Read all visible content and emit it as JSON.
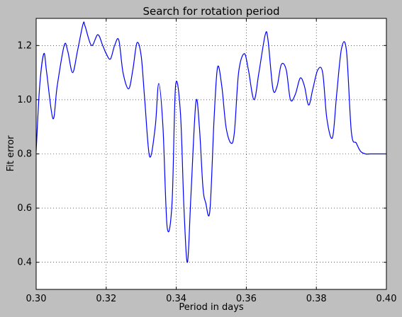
{
  "chart_data": {
    "type": "line",
    "title": "Search for rotation period",
    "xlabel": "Period in days",
    "ylabel": "Fit error",
    "xlim": [
      0.3,
      0.4
    ],
    "ylim": [
      0.3,
      1.3
    ],
    "xticks": [
      0.3,
      0.32,
      0.34,
      0.36,
      0.38,
      0.4
    ],
    "xtick_labels": [
      "0.30",
      "0.32",
      "0.34",
      "0.36",
      "0.38",
      "0.40"
    ],
    "yticks": [
      0.4,
      0.6,
      0.8,
      1.0,
      1.2
    ],
    "ytick_labels": [
      "0.4",
      "0.6",
      "0.8",
      "1.0",
      "1.2"
    ],
    "grid": true,
    "series": [
      {
        "color": "#0000ff",
        "x": [
          0.3,
          0.301,
          0.3022,
          0.303,
          0.3048,
          0.306,
          0.308,
          0.309,
          0.3104,
          0.3118,
          0.3134,
          0.314,
          0.3158,
          0.3176,
          0.319,
          0.32,
          0.3212,
          0.3224,
          0.3236,
          0.3248,
          0.3264,
          0.3276,
          0.3288,
          0.33,
          0.331,
          0.3324,
          0.334,
          0.335,
          0.3362,
          0.3374,
          0.3388,
          0.3398,
          0.3412,
          0.3422,
          0.3432,
          0.3442,
          0.3456,
          0.3466,
          0.3476,
          0.3484,
          0.3496,
          0.3508,
          0.3518,
          0.353,
          0.3542,
          0.3556,
          0.3566,
          0.3578,
          0.3594,
          0.3606,
          0.3622,
          0.3636,
          0.3654,
          0.3662,
          0.3676,
          0.3688,
          0.37,
          0.3714,
          0.3726,
          0.374,
          0.3754,
          0.3766,
          0.3778,
          0.379,
          0.3804,
          0.3818,
          0.383,
          0.3846,
          0.3858,
          0.3872,
          0.3886,
          0.39,
          0.3914,
          0.3926,
          0.394,
          0.3954,
          0.3962,
          0.3976,
          0.399,
          0.4
        ],
        "y": [
          0.81,
          1.05,
          1.17,
          1.1,
          0.93,
          1.05,
          1.2,
          1.18,
          1.1,
          1.18,
          1.28,
          1.27,
          1.2,
          1.24,
          1.2,
          1.17,
          1.15,
          1.2,
          1.22,
          1.1,
          1.04,
          1.11,
          1.21,
          1.16,
          1.0,
          0.79,
          0.9,
          1.06,
          0.9,
          0.53,
          0.62,
          1.05,
          0.95,
          0.6,
          0.4,
          0.65,
          0.99,
          0.9,
          0.68,
          0.62,
          0.59,
          0.93,
          1.12,
          1.05,
          0.9,
          0.84,
          0.88,
          1.1,
          1.17,
          1.11,
          1.0,
          1.1,
          1.24,
          1.22,
          1.04,
          1.05,
          1.13,
          1.11,
          1.0,
          1.02,
          1.08,
          1.05,
          0.98,
          1.04,
          1.11,
          1.1,
          0.93,
          0.86,
          1.02,
          1.19,
          1.18,
          0.88,
          0.84,
          0.81,
          0.8,
          0.8,
          0.8,
          0.8,
          0.8,
          0.8
        ]
      }
    ]
  }
}
